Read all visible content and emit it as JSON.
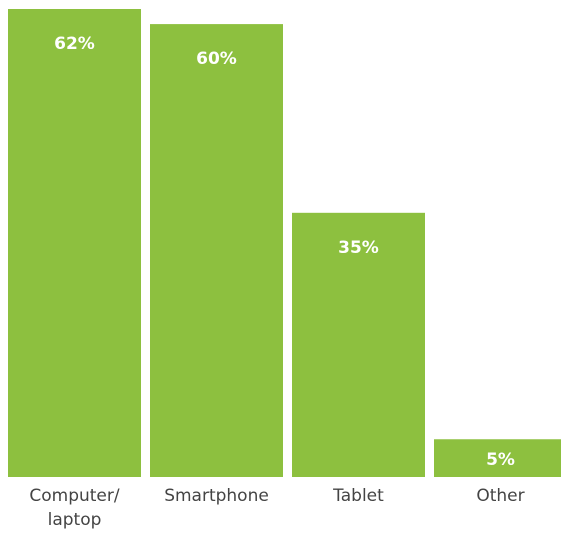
{
  "chart_data": {
    "type": "bar",
    "title": "",
    "xlabel": "",
    "ylabel": "",
    "categories": [
      [
        "Computer/",
        "laptop"
      ],
      [
        "Smartphone"
      ],
      [
        "Tablet"
      ],
      [
        "Other"
      ]
    ],
    "values": [
      62,
      60,
      35,
      5
    ],
    "value_labels": [
      "62%",
      "60%",
      "35%",
      "5%"
    ],
    "ylim": [
      0,
      62
    ],
    "grid": false,
    "legend": "none",
    "bar_color": "#8dc03f",
    "label_color": "#ffffff",
    "category_label_color": "#444444"
  }
}
